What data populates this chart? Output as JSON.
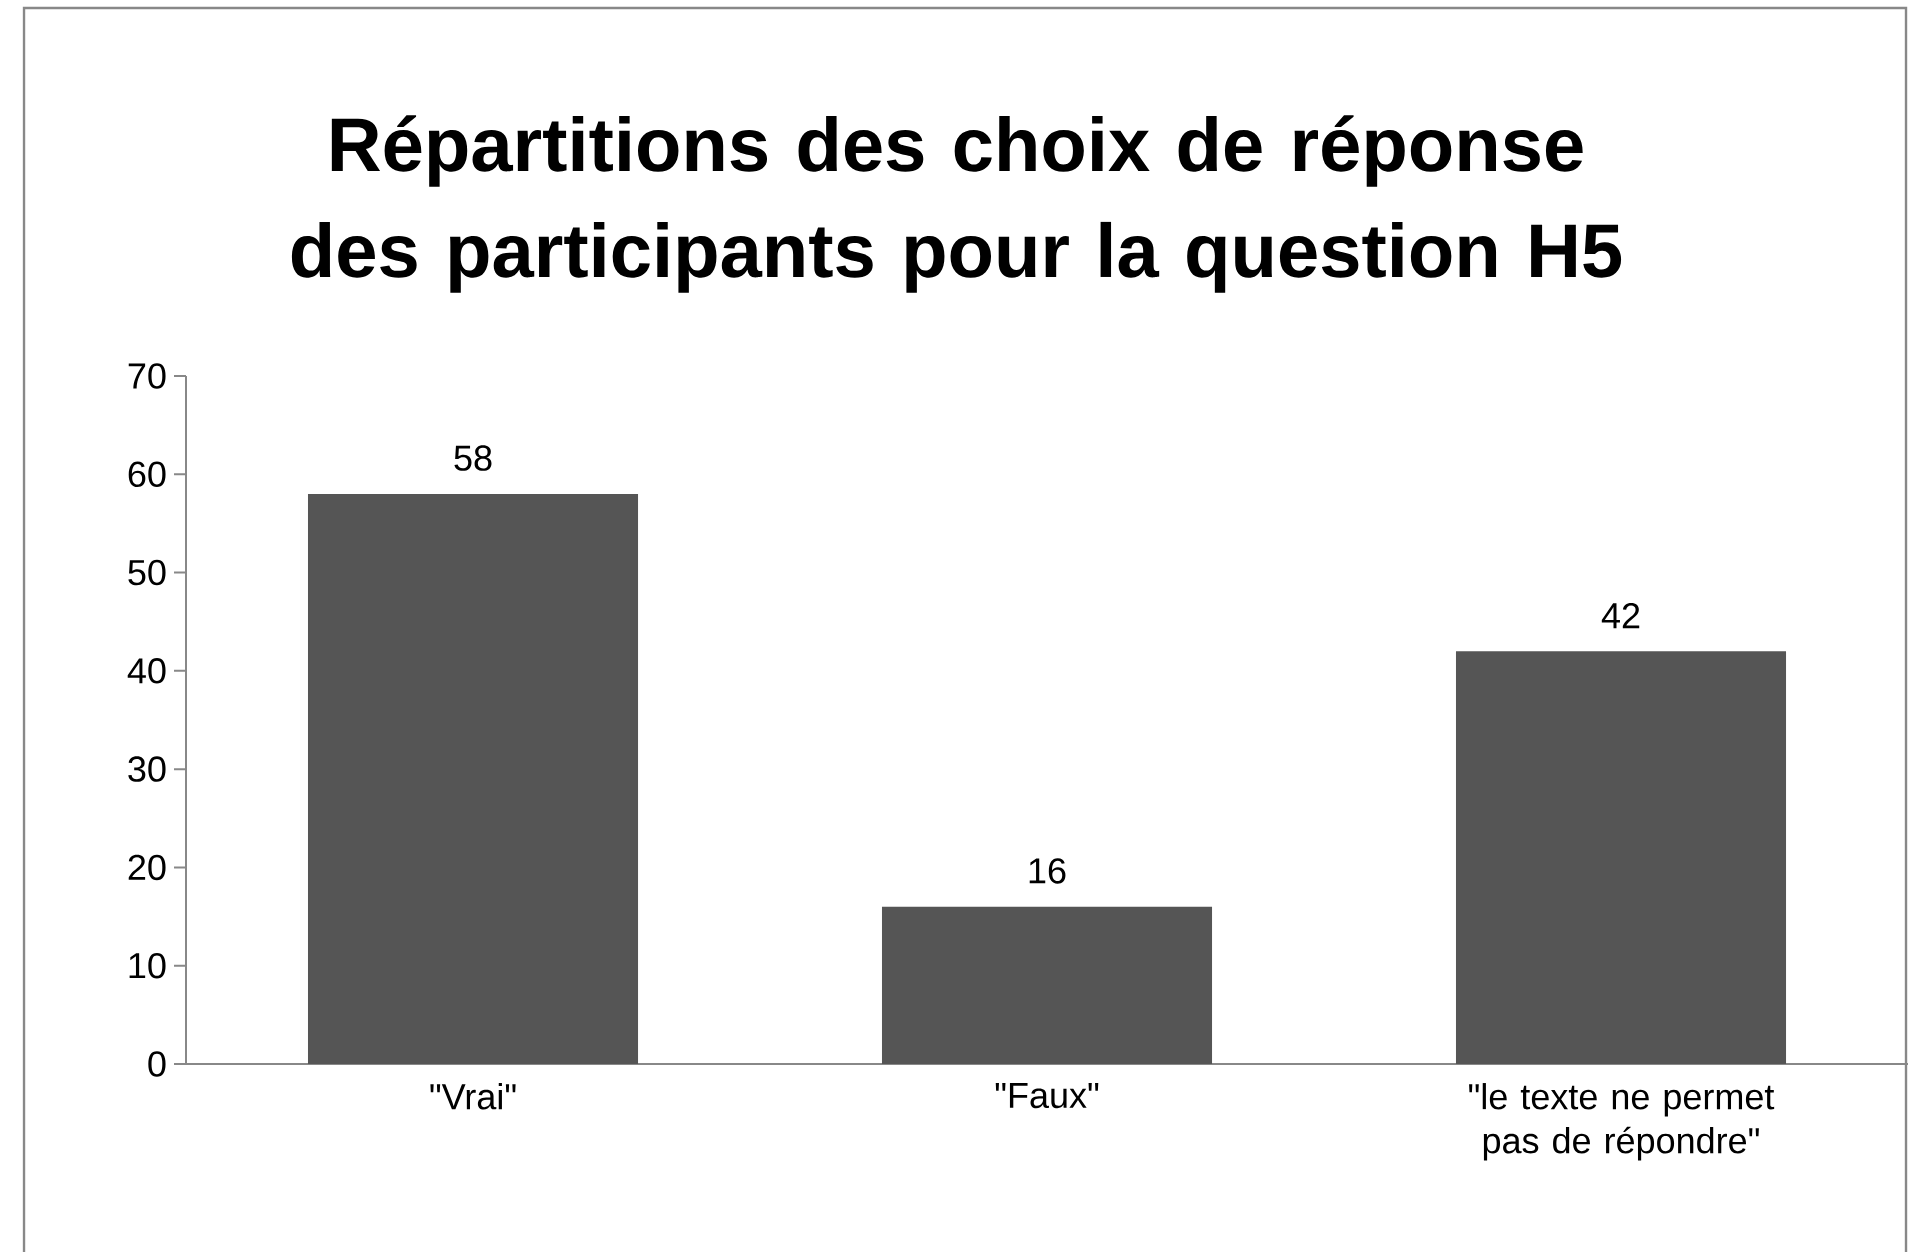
{
  "chart_data": {
    "type": "bar",
    "title": "Répartitions des choix de réponse des participants pour la question H5",
    "categories": [
      "\"Vrai\"",
      "\"Faux\"",
      "\"le texte ne permet pas de répondre\""
    ],
    "values": [
      58,
      16,
      42
    ],
    "color": "#555555",
    "ylim": [
      0,
      70
    ],
    "yticks": [
      0,
      10,
      20,
      30,
      40,
      50,
      60,
      70
    ],
    "data_labels": true
  }
}
